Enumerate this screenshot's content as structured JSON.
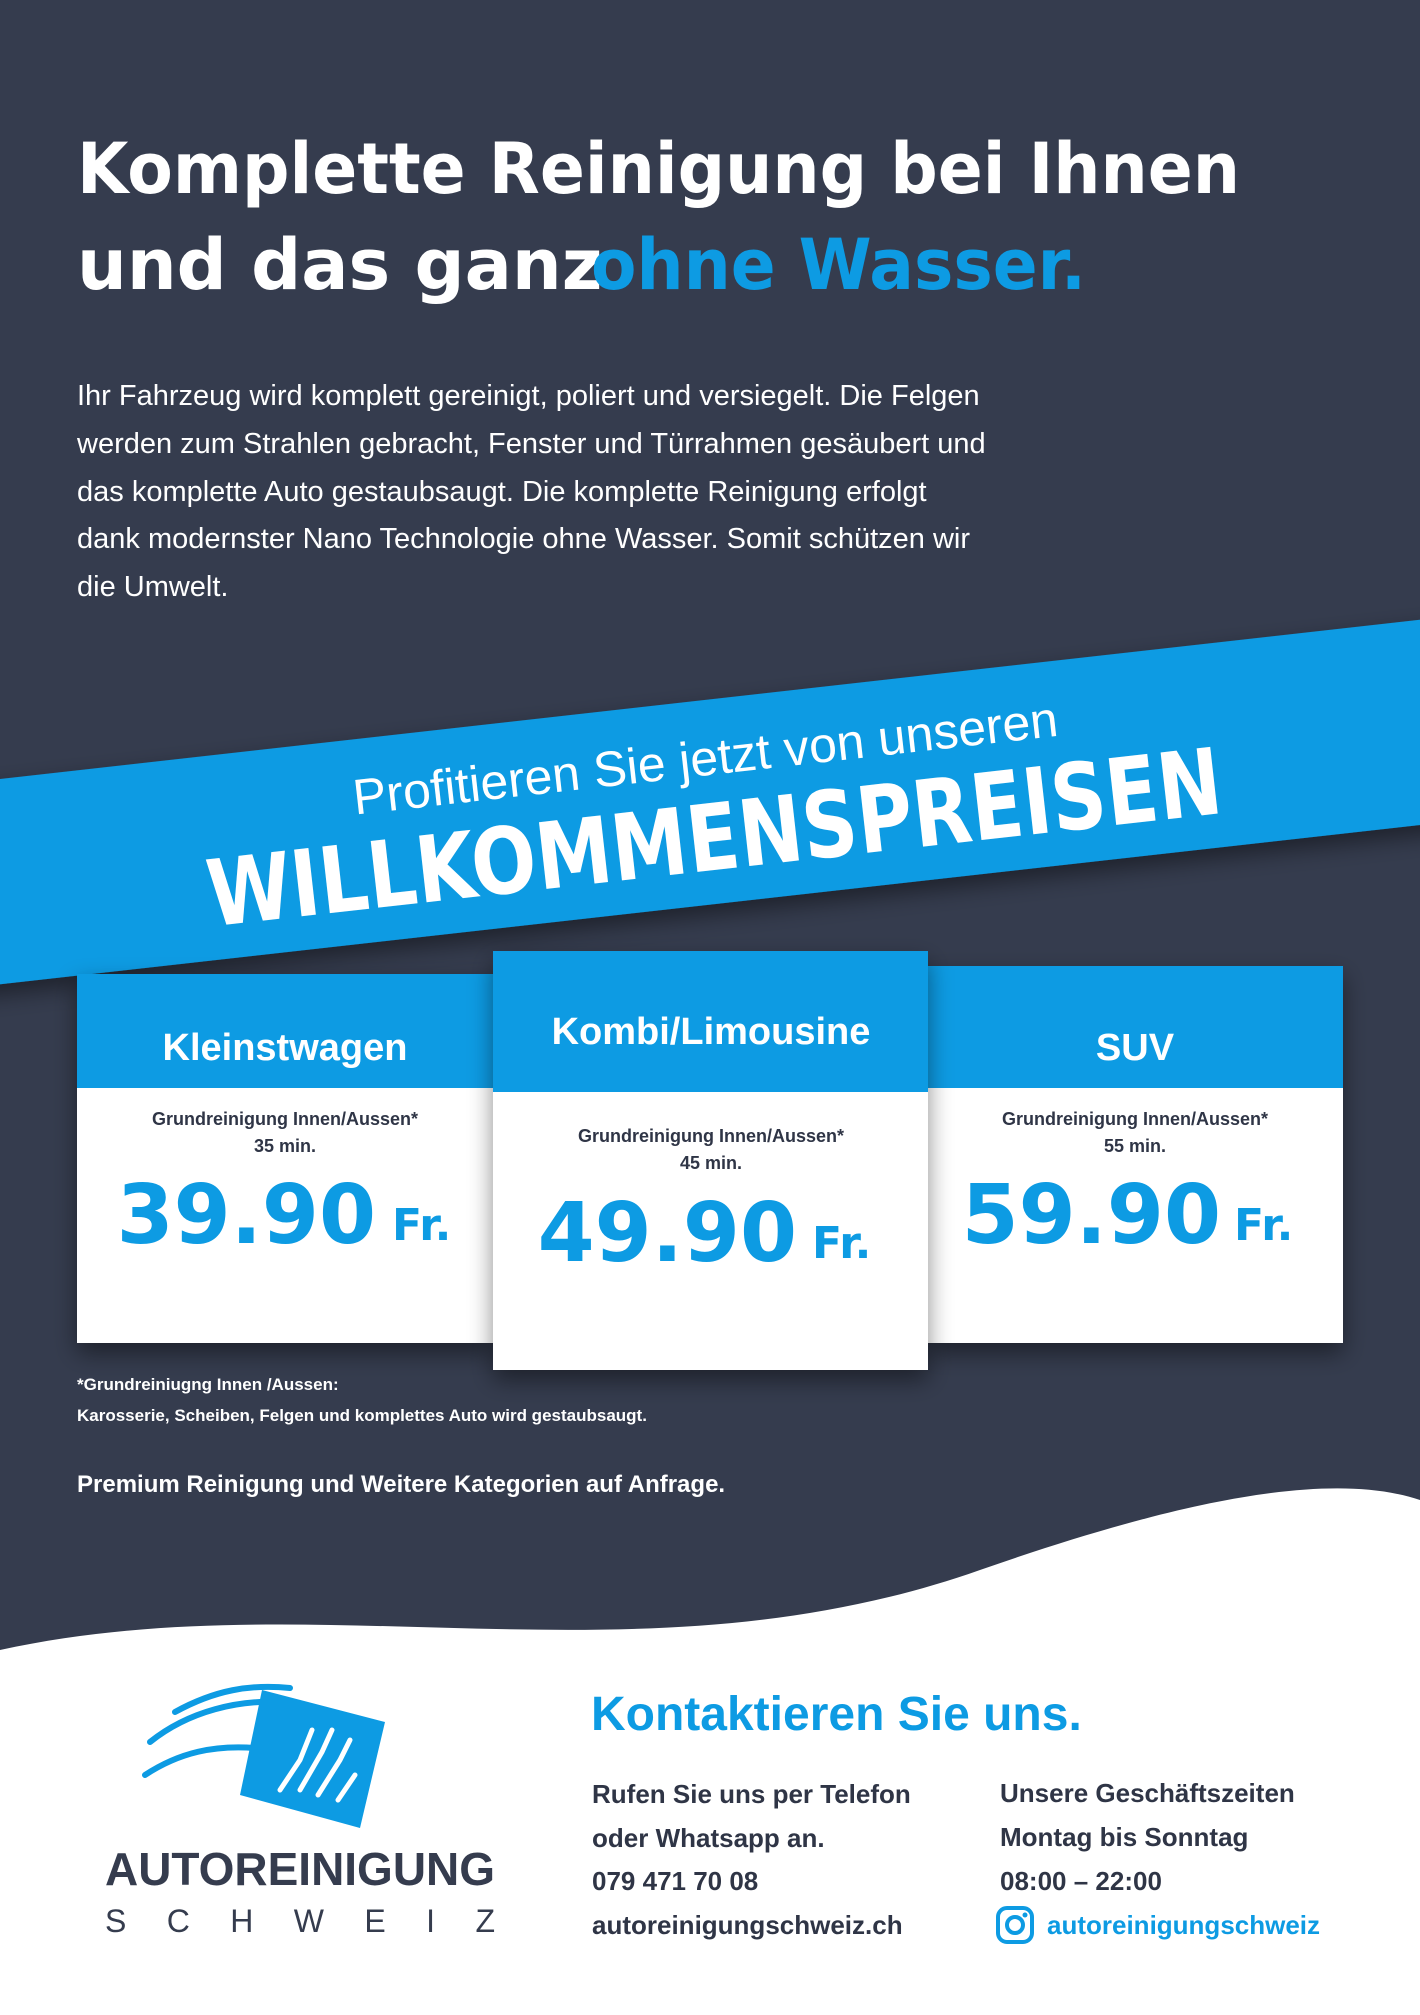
{
  "headline": {
    "line1": "Komplette Reinigung bei Ihnen",
    "line2": "und das ganz",
    "highlight": "ohne Wasser."
  },
  "intro": [
    "Ihr Fahrzeug wird komplett gereinigt, poliert und versiegelt. Die Felgen",
    "werden zum Strahlen gebracht, Fenster und Türrahmen gesäubert und",
    "das komplette Auto gestaubsaugt. Die komplette Reinigung erfolgt",
    "dank modernster Nano Technologie ohne Wasser. Somit schützen wir",
    "die Umwelt."
  ],
  "banner": {
    "line1": "Profitieren Sie jetzt von unseren",
    "line2": "WILLKOMMENSPREISEN"
  },
  "cards": [
    {
      "title": "Kleinstwagen",
      "service": "Grundreinigung Innen/Aussen*",
      "duration": "35 min.",
      "price": "39.90",
      "currency": "Fr."
    },
    {
      "title": "Kombi/Limousine",
      "service": "Grundreinigung Innen/Aussen*",
      "duration": "45 min.",
      "price": "49.90",
      "currency": "Fr."
    },
    {
      "title": "SUV",
      "service": "Grundreinigung Innen/Aussen*",
      "duration": "55 min.",
      "price": "59.90",
      "currency": "Fr."
    }
  ],
  "footnote": {
    "title": "*Grundreiniugng Innen /Aussen:",
    "text": "Karosserie, Scheiben, Felgen und komplettes Auto wird gestaubsaugt."
  },
  "premium": "Premium Reinigung und Weitere Kategorien auf Anfrage.",
  "logo": {
    "name": "AUTOREINIGUNG",
    "sub": "SCHWEIZ"
  },
  "contact": {
    "title": "Kontaktieren Sie uns.",
    "phone_lines": [
      "Rufen Sie uns per Telefon",
      "oder Whatsapp an.",
      "079 471 70 08",
      "autoreinigungschweiz.ch"
    ],
    "hours_lines": [
      "Unsere Geschäftszeiten",
      "Montag bis Sonntag",
      "08:00 – 22:00"
    ],
    "instagram": "autoreinigungschweiz"
  }
}
